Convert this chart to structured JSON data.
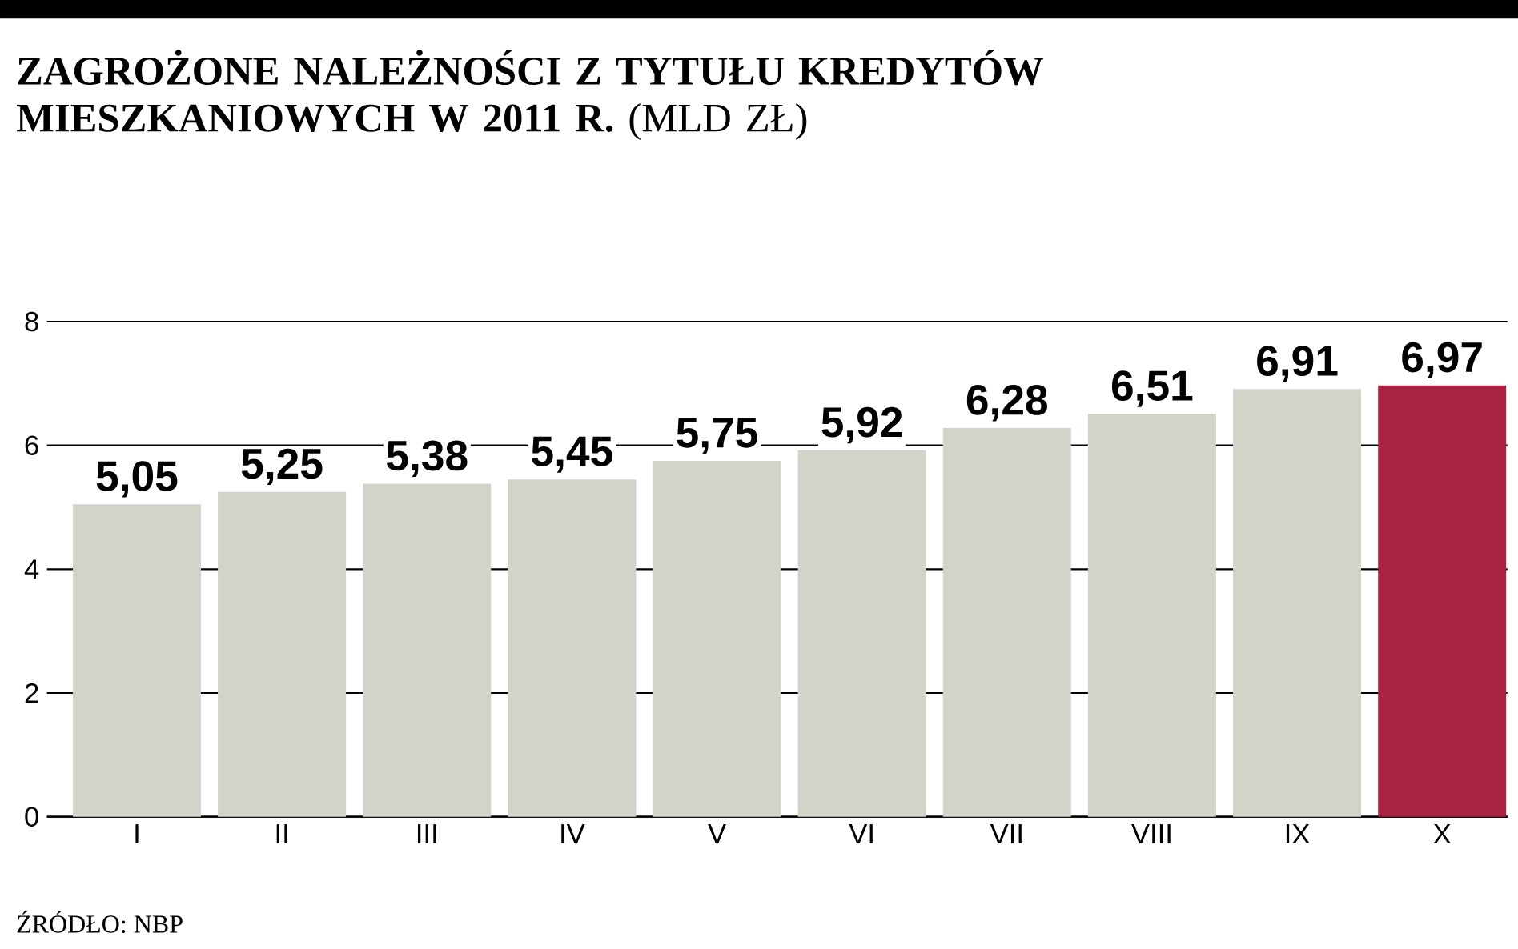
{
  "chart_data": {
    "type": "bar",
    "title": "**ZAGROŻONE NALEŻNOŚCI Z TYTUŁU KREDYTÓW MIESZKANIOWYCH W 2011 R.** (MLD ZŁ)",
    "categories": [
      "I",
      "II",
      "III",
      "IV",
      "V",
      "VI",
      "VII",
      "VIII",
      "IX",
      "X"
    ],
    "values": [
      5.05,
      5.25,
      5.38,
      5.45,
      5.75,
      5.92,
      6.28,
      6.51,
      6.91,
      6.97
    ],
    "value_labels": [
      "5,05",
      "5,25",
      "5,38",
      "5,45",
      "5,75",
      "5,92",
      "6,28",
      "6,51",
      "6,91",
      "6,97"
    ],
    "colors": [
      "#d4d3ca",
      "#d4d3ca",
      "#d4d3ca",
      "#d4d3ca",
      "#d4d3ca",
      "#d4d3ca",
      "#d4d3ca",
      "#d4d3ca",
      "#d4d3ca",
      "#a82442"
    ],
    "ylim": [
      0,
      8
    ],
    "yticks": [
      0,
      2,
      4,
      6,
      8
    ],
    "grid": "y",
    "annotations": [
      "ŹRÓDŁO: NBP"
    ]
  }
}
